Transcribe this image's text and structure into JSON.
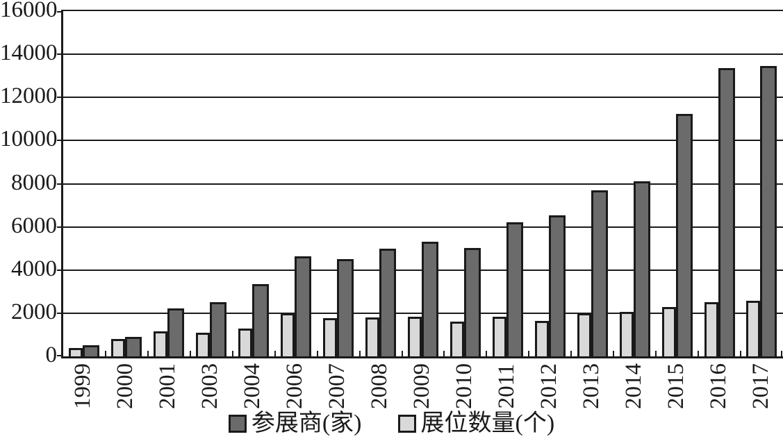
{
  "chart_data": {
    "type": "bar",
    "title": "",
    "categories": [
      "1999",
      "2000",
      "2001",
      "2003",
      "2004",
      "2006",
      "2007",
      "2008",
      "2009",
      "2010",
      "2011",
      "2012",
      "2013",
      "2014",
      "2015",
      "2016",
      "2017"
    ],
    "series": [
      {
        "name": "参展商(家)",
        "color": "#6b6b6b",
        "values": [
          500,
          900,
          2230,
          2500,
          3350,
          4650,
          4500,
          5000,
          5300,
          5030,
          6200,
          6550,
          7700,
          8100,
          11230,
          13350,
          13460
        ]
      },
      {
        "name": "展位数量(个)",
        "color": "#d9d9d9",
        "values": [
          400,
          800,
          1150,
          1100,
          1300,
          2000,
          1780,
          1800,
          1850,
          1620,
          1840,
          1630,
          2000,
          2070,
          2270,
          2500,
          2560
        ]
      }
    ],
    "xlabel": "",
    "ylabel": "",
    "ylim": [
      0,
      16000
    ],
    "y_step": 2000,
    "y_ticks": [
      "0",
      "2000",
      "4000",
      "6000",
      "8000",
      "10000",
      "12000",
      "14000",
      "16000"
    ],
    "grid": true,
    "legend_position": "bottom",
    "colors": {
      "axis": "#1a1a1a",
      "gridline": "#1a1a1a",
      "background": "#ffffff",
      "bar_border": "#1a1a1a"
    }
  }
}
